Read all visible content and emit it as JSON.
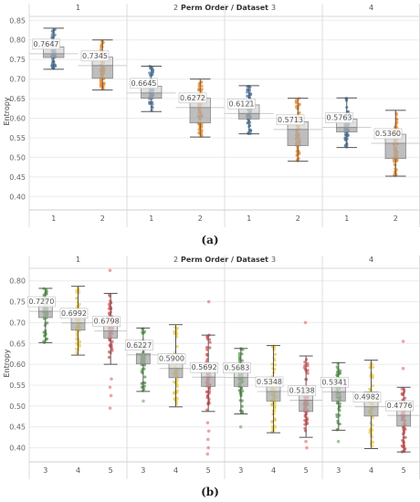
{
  "header_title": "Perm Order / Dataset",
  "y_axis_label": "Entropy",
  "figure_labels": [
    "(a)",
    "(b)"
  ],
  "chart_data": [
    {
      "type": "box",
      "label": "(a)",
      "title": "Perm Order / Dataset",
      "ylabel": "Entropy",
      "ylim": [
        0.375,
        0.86
      ],
      "yticks": [
        "0.40",
        "0.45",
        "0.50",
        "0.55",
        "0.60",
        "0.65",
        "0.70",
        "0.75",
        "0.80",
        "0.85"
      ],
      "groups": [
        "1",
        "2",
        "3",
        "4"
      ],
      "boxes": [
        {
          "group": "1",
          "category": "1",
          "color": "#4e79a7",
          "median_label": "0.7647",
          "median": 0.7647,
          "q1": 0.755,
          "q3": 0.782,
          "whisker_low": 0.725,
          "whisker_high": 0.83
        },
        {
          "group": "1",
          "category": "2",
          "color": "#f28e2b",
          "median_label": "0.7345",
          "median": 0.7345,
          "q1": 0.702,
          "q3": 0.756,
          "whisker_low": 0.672,
          "whisker_high": 0.8
        },
        {
          "group": "2",
          "category": "1",
          "color": "#4e79a7",
          "median_label": "0.6645",
          "median": 0.6645,
          "q1": 0.651,
          "q3": 0.682,
          "whisker_low": 0.617,
          "whisker_high": 0.733
        },
        {
          "group": "2",
          "category": "2",
          "color": "#f28e2b",
          "median_label": "0.6272",
          "median": 0.6272,
          "q1": 0.588,
          "q3": 0.651,
          "whisker_low": 0.552,
          "whisker_high": 0.7
        },
        {
          "group": "3",
          "category": "1",
          "color": "#4e79a7",
          "median_label": "0.6121",
          "median": 0.6121,
          "q1": 0.598,
          "q3": 0.634,
          "whisker_low": 0.56,
          "whisker_high": 0.683
        },
        {
          "group": "3",
          "category": "2",
          "color": "#f28e2b",
          "median_label": "0.5713",
          "median": 0.5713,
          "q1": 0.53,
          "q3": 0.591,
          "whisker_low": 0.49,
          "whisker_high": 0.651
        },
        {
          "group": "4",
          "category": "1",
          "color": "#4e79a7",
          "median_label": "0.5763",
          "median": 0.5763,
          "q1": 0.565,
          "q3": 0.598,
          "whisker_low": 0.525,
          "whisker_high": 0.652
        },
        {
          "group": "4",
          "category": "2",
          "color": "#f28e2b",
          "median_label": "0.5360",
          "median": 0.536,
          "q1": 0.497,
          "q3": 0.559,
          "whisker_low": 0.452,
          "whisker_high": 0.62
        }
      ]
    },
    {
      "type": "box",
      "label": "(b)",
      "title": "Perm Order / Dataset",
      "ylabel": "Entropy",
      "ylim": [
        0.375,
        0.83
      ],
      "yticks": [
        "0.40",
        "0.45",
        "0.50",
        "0.55",
        "0.60",
        "0.65",
        "0.70",
        "0.75",
        "0.80"
      ],
      "groups": [
        "1",
        "2",
        "3",
        "4"
      ],
      "boxes": [
        {
          "group": "1",
          "category": "3",
          "color": "#59a14f",
          "median_label": "0.7270",
          "median": 0.727,
          "q1": 0.712,
          "q3": 0.742,
          "whisker_low": 0.652,
          "whisker_high": 0.782
        },
        {
          "group": "1",
          "category": "4",
          "color": "#edc948",
          "median_label": "0.6992",
          "median": 0.6992,
          "q1": 0.682,
          "q3": 0.729,
          "whisker_low": 0.622,
          "whisker_high": 0.787
        },
        {
          "group": "1",
          "category": "5",
          "color": "#e15759",
          "median_label": "0.6798",
          "median": 0.6798,
          "q1": 0.663,
          "q3": 0.702,
          "whisker_low": 0.6,
          "whisker_high": 0.77,
          "outliers": [
            0.825,
            0.565,
            0.545,
            0.525,
            0.495
          ]
        },
        {
          "group": "2",
          "category": "3",
          "color": "#59a14f",
          "median_label": "0.6227",
          "median": 0.6227,
          "q1": 0.601,
          "q3": 0.626,
          "whisker_low": 0.535,
          "whisker_high": 0.687,
          "outliers": [
            0.512
          ]
        },
        {
          "group": "2",
          "category": "4",
          "color": "#edc948",
          "median_label": "0.5900",
          "median": 0.59,
          "q1": 0.568,
          "q3": 0.625,
          "whisker_low": 0.498,
          "whisker_high": 0.695
        },
        {
          "group": "2",
          "category": "5",
          "color": "#e15759",
          "median_label": "0.5692",
          "median": 0.5692,
          "q1": 0.547,
          "q3": 0.598,
          "whisker_low": 0.487,
          "whisker_high": 0.67,
          "outliers": [
            0.75,
            0.46,
            0.44,
            0.42,
            0.4,
            0.385
          ]
        },
        {
          "group": "3",
          "category": "3",
          "color": "#59a14f",
          "median_label": "0.5683",
          "median": 0.5683,
          "q1": 0.547,
          "q3": 0.589,
          "whisker_low": 0.481,
          "whisker_high": 0.638,
          "outliers": [
            0.45
          ]
        },
        {
          "group": "3",
          "category": "4",
          "color": "#edc948",
          "median_label": "0.5348",
          "median": 0.5348,
          "q1": 0.512,
          "q3": 0.568,
          "whisker_low": 0.436,
          "whisker_high": 0.645
        },
        {
          "group": "3",
          "category": "5",
          "color": "#e15759",
          "median_label": "0.5138",
          "median": 0.5138,
          "q1": 0.487,
          "q3": 0.542,
          "whisker_low": 0.425,
          "whisker_high": 0.62,
          "outliers": [
            0.7,
            0.415,
            0.4
          ]
        },
        {
          "group": "4",
          "category": "3",
          "color": "#59a14f",
          "median_label": "0.5341",
          "median": 0.5341,
          "q1": 0.512,
          "q3": 0.562,
          "whisker_low": 0.442,
          "whisker_high": 0.604,
          "outliers": [
            0.415
          ]
        },
        {
          "group": "4",
          "category": "4",
          "color": "#edc948",
          "median_label": "0.4982",
          "median": 0.4982,
          "q1": 0.476,
          "q3": 0.534,
          "whisker_low": 0.398,
          "whisker_high": 0.61
        },
        {
          "group": "4",
          "category": "5",
          "color": "#e15759",
          "median_label": "0.4776",
          "median": 0.4776,
          "q1": 0.452,
          "q3": 0.505,
          "whisker_low": 0.39,
          "whisker_high": 0.545,
          "outliers": [
            0.655,
            0.59
          ]
        }
      ]
    }
  ]
}
